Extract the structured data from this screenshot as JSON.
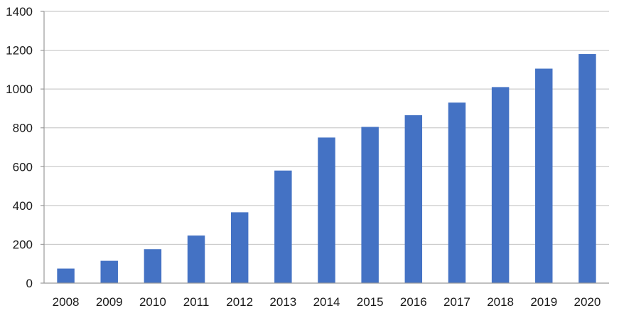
{
  "chart_data": {
    "type": "bar",
    "title": "",
    "xlabel": "",
    "ylabel": "",
    "categories": [
      "2008",
      "2009",
      "2010",
      "2011",
      "2012",
      "2013",
      "2014",
      "2015",
      "2016",
      "2017",
      "2018",
      "2019",
      "2020"
    ],
    "values": [
      75,
      115,
      175,
      245,
      365,
      580,
      750,
      805,
      865,
      930,
      1010,
      1105,
      1180
    ],
    "ylim": [
      0,
      1400
    ],
    "yticks": [
      "0",
      "200",
      "400",
      "600",
      "800",
      "1000",
      "1200",
      "1400"
    ],
    "grid": true,
    "bar_color": "#4472C4",
    "grid_color": "#BFBFBF"
  }
}
